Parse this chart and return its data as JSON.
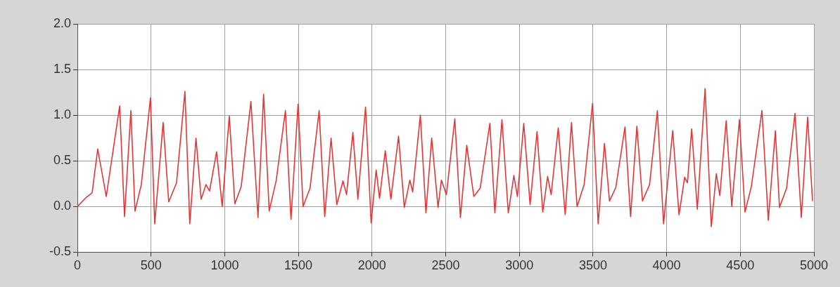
{
  "chart_data": {
    "type": "line",
    "x": [
      0,
      60,
      100,
      138,
      196,
      287,
      320,
      363,
      391,
      434,
      496,
      525,
      582,
      620,
      673,
      730,
      763,
      805,
      840,
      873,
      897,
      945,
      983,
      1031,
      1069,
      1112,
      1178,
      1226,
      1264,
      1302,
      1350,
      1412,
      1450,
      1498,
      1532,
      1579,
      1641,
      1679,
      1722,
      1761,
      1803,
      1827,
      1870,
      1904,
      1956,
      1994,
      2028,
      2051,
      2090,
      2128,
      2180,
      2219,
      2257,
      2276,
      2328,
      2366,
      2405,
      2448,
      2471,
      2505,
      2562,
      2600,
      2643,
      2691,
      2734,
      2800,
      2834,
      2882,
      2925,
      2963,
      2987,
      3030,
      3073,
      3120,
      3159,
      3192,
      3216,
      3264,
      3311,
      3354,
      3392,
      3440,
      3497,
      3535,
      3578,
      3612,
      3655,
      3717,
      3755,
      3798,
      3836,
      3884,
      3937,
      3979,
      4041,
      4084,
      4122,
      4141,
      4170,
      4208,
      4261,
      4303,
      4337,
      4361,
      4404,
      4442,
      4494,
      4532,
      4575,
      4647,
      4690,
      4738,
      4766,
      4814,
      4871,
      4914,
      4957,
      4990
    ],
    "series": [
      {
        "color": "#e03838",
        "values": [
          0.0,
          0.1,
          0.15,
          0.63,
          0.11,
          1.1,
          -0.11,
          1.05,
          -0.05,
          0.24,
          1.19,
          -0.19,
          0.92,
          0.05,
          0.26,
          1.26,
          -0.19,
          0.75,
          0.08,
          0.24,
          0.17,
          0.6,
          0.0,
          0.99,
          0.03,
          0.22,
          1.15,
          -0.12,
          1.23,
          -0.05,
          0.29,
          1.05,
          -0.14,
          1.12,
          0.0,
          0.2,
          1.05,
          -0.11,
          0.75,
          0.02,
          0.28,
          0.13,
          0.81,
          0.08,
          1.09,
          -0.18,
          0.4,
          0.09,
          0.61,
          0.08,
          0.77,
          -0.01,
          0.29,
          0.16,
          1.0,
          -0.07,
          0.75,
          -0.01,
          0.29,
          0.13,
          0.96,
          -0.12,
          0.67,
          0.11,
          0.2,
          0.91,
          -0.07,
          0.95,
          -0.07,
          0.34,
          0.11,
          0.91,
          0.02,
          0.82,
          -0.06,
          0.33,
          0.13,
          0.86,
          -0.09,
          0.92,
          0.0,
          0.24,
          1.13,
          -0.19,
          0.69,
          0.06,
          0.21,
          0.87,
          -0.11,
          0.88,
          0.06,
          0.24,
          1.05,
          -0.19,
          0.83,
          -0.09,
          0.32,
          0.26,
          0.85,
          -0.03,
          1.29,
          -0.22,
          0.36,
          0.12,
          0.94,
          0.0,
          0.95,
          -0.06,
          0.22,
          1.05,
          -0.15,
          0.83,
          -0.01,
          0.2,
          1.02,
          -0.12,
          0.98,
          0.06
        ]
      }
    ],
    "xlim": [
      0,
      5000
    ],
    "xticks": [
      0,
      500,
      1000,
      1500,
      2000,
      2500,
      3000,
      3500,
      4000,
      4500,
      5000
    ],
    "ylim": [
      -0.5,
      2.0
    ],
    "yticks": [
      {
        "value": -0.5,
        "label": "-0.5"
      },
      {
        "value": 0,
        "label": "0.0"
      },
      {
        "value": 0.5,
        "label": "0.5"
      },
      {
        "value": 1,
        "label": "1.0"
      },
      {
        "value": 1.5,
        "label": "1.5"
      },
      {
        "value": 2,
        "label": "2.0"
      }
    ],
    "grid": true,
    "marker": "none",
    "line_style": "solid"
  }
}
